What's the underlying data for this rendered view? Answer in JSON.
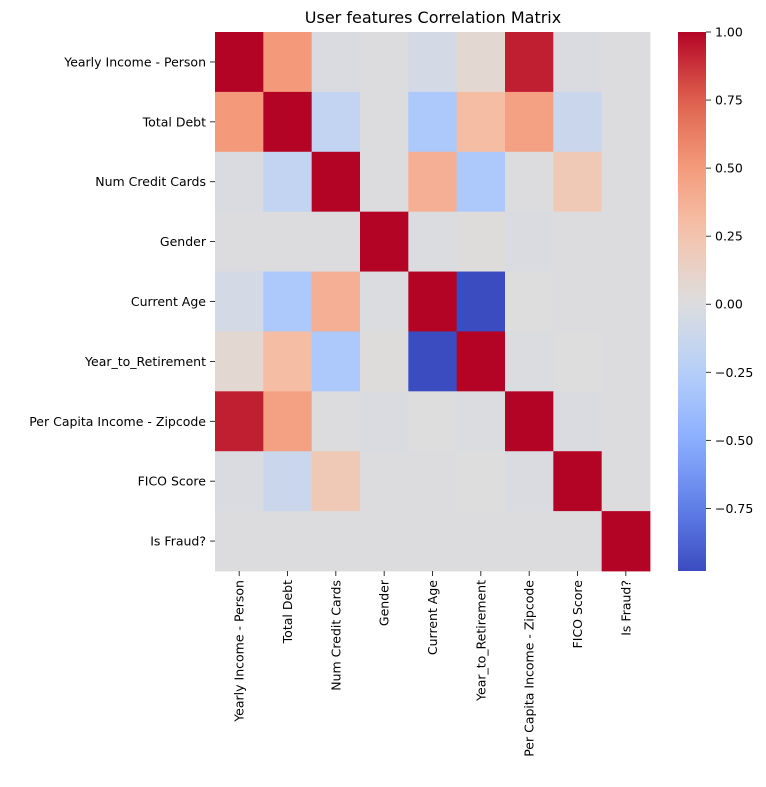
{
  "chart_data": {
    "type": "heatmap",
    "title": "User features Correlation Matrix",
    "xlabel": "",
    "ylabel": "",
    "colormap": "coolwarm",
    "categories": [
      "Yearly Income - Person",
      "Total Debt",
      "Num Credit Cards",
      "Gender",
      "Current Age",
      "Year_to_Retirement",
      "Per Capita Income - Zipcode",
      "FICO Score",
      "Is Fraud?"
    ],
    "matrix": [
      [
        1.0,
        0.51,
        -0.02,
        0.0,
        -0.06,
        0.07,
        0.93,
        -0.02,
        0.0
      ],
      [
        0.51,
        1.0,
        -0.17,
        0.0,
        -0.3,
        0.3,
        0.47,
        -0.12,
        0.0
      ],
      [
        -0.02,
        -0.17,
        1.0,
        0.0,
        0.38,
        -0.3,
        0.0,
        0.21,
        0.0
      ],
      [
        0.0,
        0.0,
        0.0,
        1.0,
        -0.01,
        0.02,
        -0.02,
        0.0,
        0.0
      ],
      [
        -0.06,
        -0.3,
        0.38,
        -0.01,
        1.0,
        -0.98,
        0.01,
        0.0,
        0.0
      ],
      [
        0.07,
        0.3,
        -0.3,
        0.02,
        -0.98,
        1.0,
        -0.01,
        0.01,
        0.0
      ],
      [
        0.93,
        0.47,
        0.0,
        -0.02,
        0.01,
        -0.01,
        1.0,
        -0.02,
        0.0
      ],
      [
        -0.02,
        -0.12,
        0.21,
        0.0,
        0.0,
        0.01,
        -0.02,
        1.0,
        0.0
      ],
      [
        0.0,
        0.0,
        0.0,
        0.0,
        0.0,
        0.0,
        0.0,
        0.0,
        1.0
      ]
    ],
    "colorbar": {
      "min": -0.98,
      "max": 1.0,
      "ticks": [
        1.0,
        0.75,
        0.5,
        0.25,
        0.0,
        -0.25,
        -0.5,
        -0.75
      ],
      "tick_labels": [
        "1.00",
        "0.75",
        "0.50",
        "0.25",
        "0.00",
        "−0.25",
        "−0.50",
        "−0.75"
      ]
    },
    "grid": false,
    "legend": "colorbar-right"
  }
}
